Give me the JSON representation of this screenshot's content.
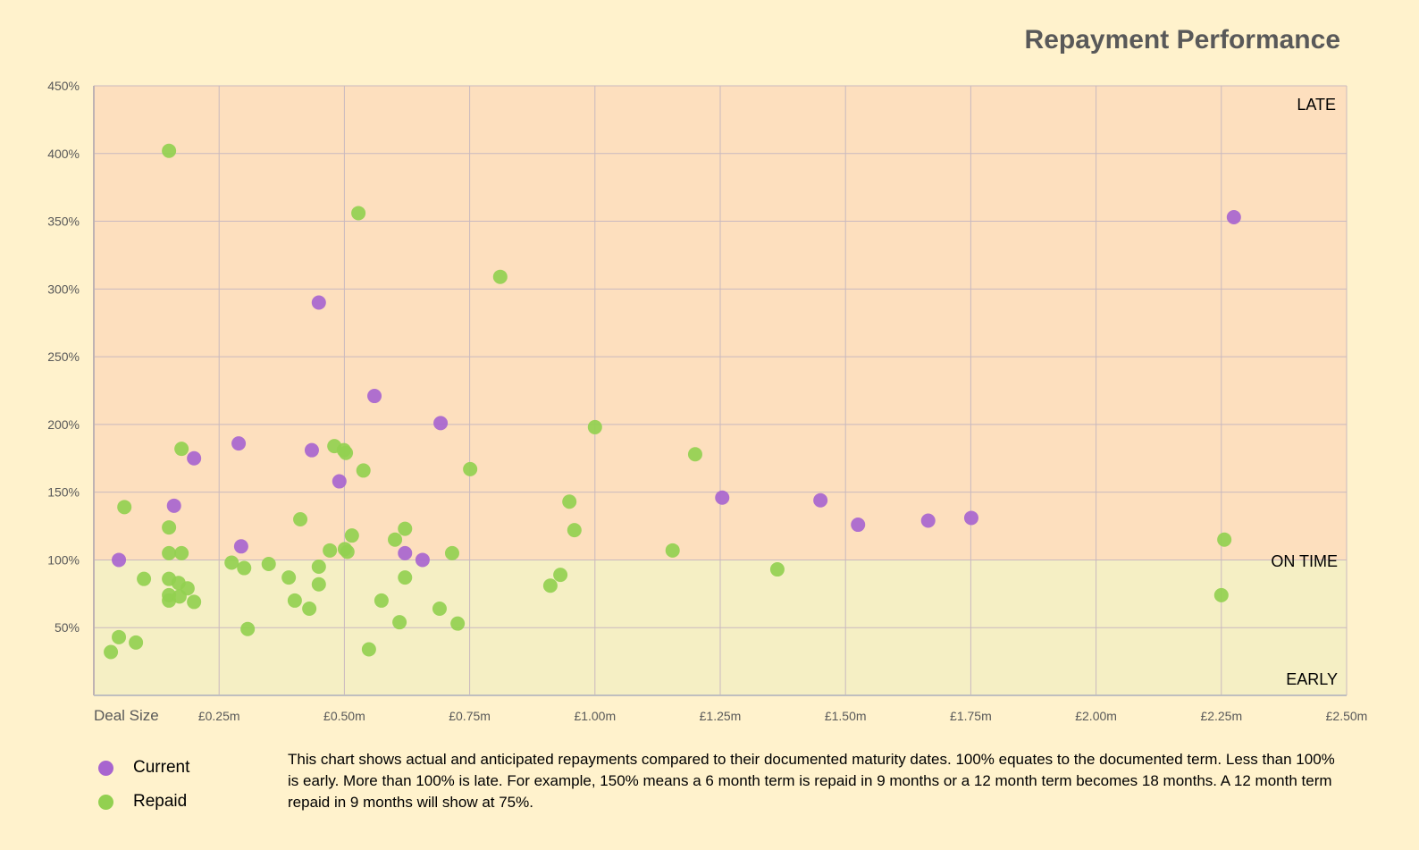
{
  "chart_data": {
    "type": "scatter",
    "title": "Repayment Performance",
    "xlabel": "Deal Size",
    "xlim": [
      0,
      2.5
    ],
    "ylim": [
      0,
      450
    ],
    "x_ticks": [
      {
        "v": 0.25,
        "label": "£0.25m"
      },
      {
        "v": 0.5,
        "label": "£0.50m"
      },
      {
        "v": 0.75,
        "label": "£0.75m"
      },
      {
        "v": 1.0,
        "label": "£1.00m"
      },
      {
        "v": 1.25,
        "label": "£1.25m"
      },
      {
        "v": 1.5,
        "label": "£1.50m"
      },
      {
        "v": 1.75,
        "label": "£1.75m"
      },
      {
        "v": 2.0,
        "label": "£2.00m"
      },
      {
        "v": 2.25,
        "label": "£2.25m"
      },
      {
        "v": 2.5,
        "label": "£2.50m"
      }
    ],
    "y_ticks": [
      {
        "v": 50,
        "label": "50%"
      },
      {
        "v": 100,
        "label": "100%"
      },
      {
        "v": 150,
        "label": "150%"
      },
      {
        "v": 200,
        "label": "200%"
      },
      {
        "v": 250,
        "label": "250%"
      },
      {
        "v": 300,
        "label": "300%"
      },
      {
        "v": 350,
        "label": "350%"
      },
      {
        "v": 400,
        "label": "400%"
      },
      {
        "v": 450,
        "label": "450%"
      }
    ],
    "grid": true,
    "zones": {
      "late": "LATE",
      "on_time": "ON TIME",
      "early": "EARLY",
      "late_color": "#fddfbe",
      "early_color": "#f5efc4"
    },
    "legend_position": "bottom-left",
    "series": [
      {
        "name": "Current",
        "color": "#a865cf",
        "points": [
          [
            0.05,
            100
          ],
          [
            0.16,
            140
          ],
          [
            0.2,
            175
          ],
          [
            0.289,
            186
          ],
          [
            0.294,
            110
          ],
          [
            0.435,
            181
          ],
          [
            0.449,
            290
          ],
          [
            0.49,
            158
          ],
          [
            0.56,
            221
          ],
          [
            0.621,
            105
          ],
          [
            0.656,
            100
          ],
          [
            0.692,
            201
          ],
          [
            1.254,
            146
          ],
          [
            1.45,
            144
          ],
          [
            1.525,
            126
          ],
          [
            1.665,
            129
          ],
          [
            1.751,
            131
          ],
          [
            2.275,
            353
          ]
        ]
      },
      {
        "name": "Repaid",
        "color": "#92d050",
        "points": [
          [
            0.034,
            32
          ],
          [
            0.05,
            43
          ],
          [
            0.084,
            39
          ],
          [
            0.061,
            139
          ],
          [
            0.1,
            86
          ],
          [
            0.15,
            402
          ],
          [
            0.15,
            124
          ],
          [
            0.15,
            105
          ],
          [
            0.15,
            86
          ],
          [
            0.15,
            74
          ],
          [
            0.15,
            70
          ],
          [
            0.169,
            83
          ],
          [
            0.171,
            73
          ],
          [
            0.175,
            182
          ],
          [
            0.175,
            105
          ],
          [
            0.187,
            79
          ],
          [
            0.2,
            69
          ],
          [
            0.275,
            98
          ],
          [
            0.3,
            94
          ],
          [
            0.307,
            49
          ],
          [
            0.349,
            97
          ],
          [
            0.389,
            87
          ],
          [
            0.401,
            70
          ],
          [
            0.412,
            130
          ],
          [
            0.43,
            64
          ],
          [
            0.449,
            95
          ],
          [
            0.449,
            82
          ],
          [
            0.471,
            107
          ],
          [
            0.48,
            184
          ],
          [
            0.499,
            181
          ],
          [
            0.503,
            179
          ],
          [
            0.501,
            108
          ],
          [
            0.506,
            106
          ],
          [
            0.515,
            118
          ],
          [
            0.528,
            356
          ],
          [
            0.538,
            166
          ],
          [
            0.549,
            34
          ],
          [
            0.574,
            70
          ],
          [
            0.601,
            115
          ],
          [
            0.61,
            54
          ],
          [
            0.621,
            123
          ],
          [
            0.621,
            87
          ],
          [
            0.69,
            64
          ],
          [
            0.715,
            105
          ],
          [
            0.726,
            53
          ],
          [
            0.751,
            167
          ],
          [
            0.811,
            309
          ],
          [
            0.911,
            81
          ],
          [
            0.931,
            89
          ],
          [
            0.949,
            143
          ],
          [
            0.959,
            122
          ],
          [
            1.0,
            198
          ],
          [
            1.155,
            107
          ],
          [
            1.2,
            178
          ],
          [
            1.364,
            93
          ],
          [
            2.25,
            74
          ],
          [
            2.256,
            115
          ]
        ]
      }
    ]
  },
  "note": "This chart shows actual and anticipated repayments compared to their documented maturity dates.  100% equates to the documented term.  Less than 100% is early.  More than 100% is late.  For example, 150% means a 6 month term is repaid in 9 months or a 12 month term becomes 18 months.  A 12 month term repaid in 9 months will show at 75%."
}
